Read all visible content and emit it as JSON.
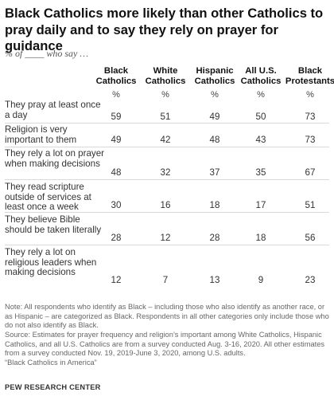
{
  "title": "Black Catholics more likely than other Catholics to pray daily and to say they rely on prayer for guidance",
  "subtitle": "% of ____ who say …",
  "chart_data": {
    "type": "table",
    "columns": [
      "Black Catholics",
      "White Catholics",
      "Hispanic Catholics",
      "All U.S. Catholics",
      "Black Protestants"
    ],
    "column_unit": "%",
    "rows": [
      {
        "label": "They pray at least once a day",
        "values": [
          59,
          51,
          49,
          50,
          73
        ]
      },
      {
        "label": "Religion is very important to them",
        "values": [
          49,
          42,
          48,
          43,
          73
        ]
      },
      {
        "label": "They rely a lot on prayer when making decisions",
        "values": [
          48,
          32,
          37,
          35,
          67
        ]
      },
      {
        "label": "They read scripture outside of services at least once a week",
        "values": [
          30,
          16,
          18,
          17,
          51
        ]
      },
      {
        "label": "They believe Bible should be taken literally",
        "values": [
          28,
          12,
          28,
          18,
          56
        ]
      },
      {
        "label": "They rely a lot on religious leaders when making decisions",
        "values": [
          12,
          7,
          13,
          9,
          23
        ]
      }
    ]
  },
  "note": "Note: All respondents who identify as Black – including those who also identify as another race, or as Hispanic – are categorized as Black. Respondents in all other categories only include those who do not also identify as Black.",
  "source": "Source: Estimates for prayer frequency and religion’s important among White Catholics, Hispanic Catholics, and all U.S. Catholics are from a survey conducted Aug. 3-16, 2020. All other estimates from a survey conducted Nov. 19, 2019-June 3, 2020, among U.S. adults.",
  "report_title": "“Black Catholics in America”",
  "org": "PEW RESEARCH CENTER",
  "colors": {
    "title": "#111111",
    "text": "#333333",
    "rule": "#d9d9d9",
    "note": "#666666"
  }
}
